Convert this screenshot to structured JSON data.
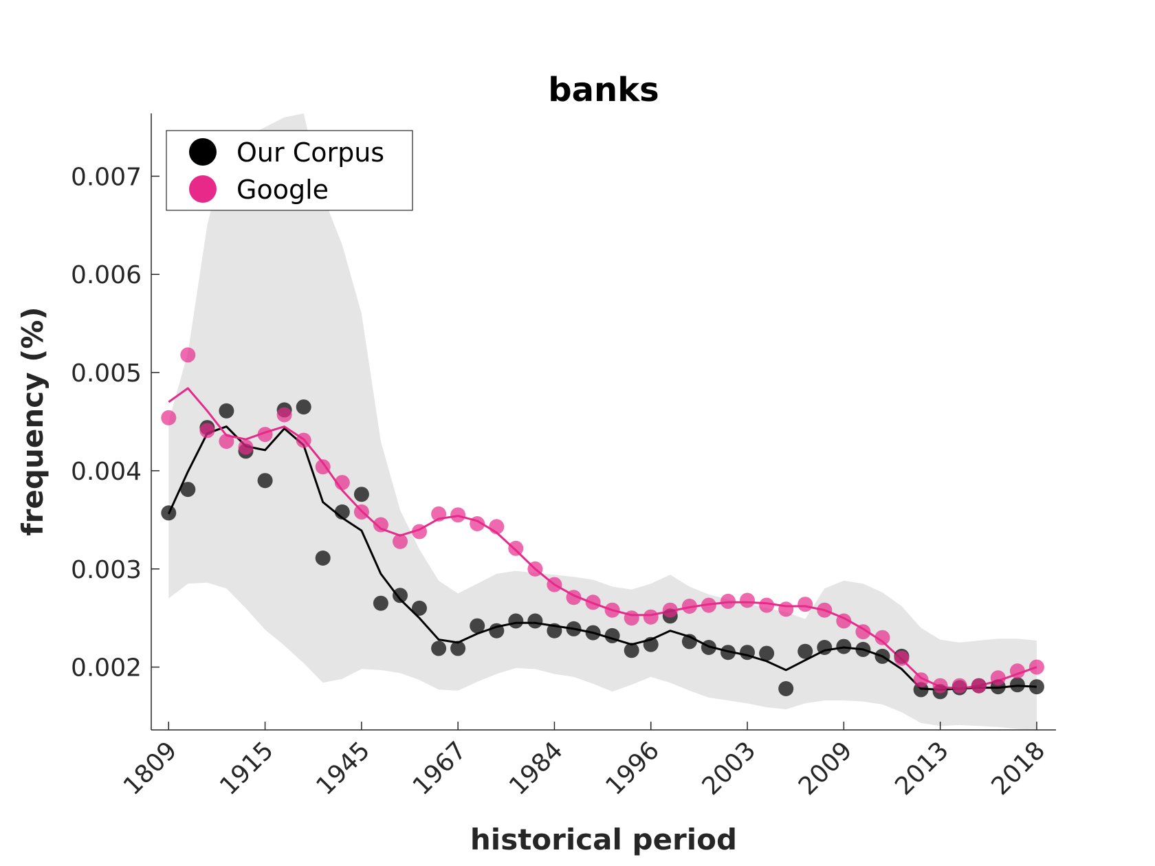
{
  "chart_data": {
    "type": "scatter",
    "title": "banks",
    "xlabel": "historical period",
    "ylabel": "frequency (%)",
    "x_tick_labels": [
      "1809",
      "1915",
      "1945",
      "1967",
      "1984",
      "1996",
      "2003",
      "2009",
      "2013",
      "2018"
    ],
    "x_tick_positions": [
      1,
      6,
      11,
      16,
      21,
      26,
      31,
      36,
      41,
      46
    ],
    "y_ticks": [
      0.002,
      0.003,
      0.004,
      0.005,
      0.006,
      0.007
    ],
    "y_tick_labels": [
      "0.002",
      "0.003",
      "0.004",
      "0.005",
      "0.006",
      "0.007"
    ],
    "xlim": [
      0.1,
      47
    ],
    "ylim": [
      0.00136,
      0.00764
    ],
    "grid": false,
    "legend_position": "top-left",
    "colors": {
      "corpus": "#000000",
      "google": "#e7298a",
      "band": "#e5e5e5",
      "axis": "#262626"
    },
    "band": {
      "name": "range",
      "x": [
        1,
        2,
        3,
        4,
        5,
        6,
        7,
        8,
        9,
        10,
        11,
        12,
        13,
        14,
        15,
        16,
        17,
        18,
        19,
        20,
        21,
        22,
        23,
        24,
        25,
        26,
        27,
        28,
        29,
        30,
        31,
        32,
        33,
        34,
        35,
        36,
        37,
        38,
        39,
        40,
        41,
        42,
        43,
        44,
        45,
        46
      ],
      "upper": [
        0.0045,
        0.0052,
        0.0065,
        0.0073,
        0.0074,
        0.0075,
        0.0076,
        0.00765,
        0.0068,
        0.0063,
        0.0056,
        0.0043,
        0.0036,
        0.0032,
        0.00288,
        0.00275,
        0.00285,
        0.00295,
        0.00298,
        0.00296,
        0.00294,
        0.00292,
        0.00289,
        0.00282,
        0.00279,
        0.00285,
        0.00294,
        0.00282,
        0.00274,
        0.00269,
        0.00265,
        0.0026,
        0.00256,
        0.00249,
        0.0028,
        0.00288,
        0.00285,
        0.00276,
        0.00262,
        0.0024,
        0.00228,
        0.00225,
        0.00227,
        0.00229,
        0.00229,
        0.00227
      ],
      "lower": [
        0.0027,
        0.00285,
        0.00286,
        0.0028,
        0.0026,
        0.00238,
        0.00222,
        0.00204,
        0.00184,
        0.00188,
        0.00198,
        0.00197,
        0.00194,
        0.00187,
        0.00177,
        0.00176,
        0.00185,
        0.00193,
        0.00199,
        0.00198,
        0.00193,
        0.0019,
        0.00183,
        0.00175,
        0.00182,
        0.0019,
        0.00184,
        0.00176,
        0.00169,
        0.00166,
        0.00163,
        0.00159,
        0.00157,
        0.00163,
        0.00166,
        0.00166,
        0.00165,
        0.00162,
        0.00154,
        0.00143,
        0.0014,
        0.00141,
        0.0014,
        0.00139,
        0.00137,
        0.00136
      ]
    },
    "series": [
      {
        "name": "Our Corpus",
        "x": [
          1,
          2,
          3,
          4,
          5,
          6,
          7,
          8,
          9,
          10,
          11,
          12,
          13,
          14,
          15,
          16,
          17,
          18,
          19,
          20,
          21,
          22,
          23,
          24,
          25,
          26,
          27,
          28,
          29,
          30,
          31,
          32,
          33,
          34,
          35,
          36,
          37,
          38,
          39,
          40,
          41,
          42,
          43,
          44,
          45,
          46
        ],
        "points": [
          0.00357,
          0.00381,
          0.00444,
          0.00461,
          0.0042,
          0.0039,
          0.00462,
          0.00465,
          0.00311,
          0.00358,
          0.00376,
          0.00265,
          0.00273,
          0.0026,
          0.00219,
          0.00219,
          0.00242,
          0.00237,
          0.00247,
          0.00247,
          0.00237,
          0.00239,
          0.00235,
          0.00232,
          0.00217,
          0.00223,
          0.00252,
          0.00226,
          0.0022,
          0.00215,
          0.00215,
          0.00214,
          0.00178,
          0.00216,
          0.0022,
          0.00221,
          0.00218,
          0.00211,
          0.00211,
          0.00177,
          0.00175,
          0.00179,
          0.00181,
          0.0018,
          0.00182,
          0.0018
        ],
        "trend": [
          0.00356,
          0.00399,
          0.00438,
          0.00445,
          0.00425,
          0.00421,
          0.00443,
          0.00426,
          0.00368,
          0.00352,
          0.00339,
          0.00295,
          0.00269,
          0.0025,
          0.00228,
          0.00225,
          0.00234,
          0.00241,
          0.00245,
          0.00245,
          0.00242,
          0.00239,
          0.00235,
          0.00229,
          0.00223,
          0.00228,
          0.00237,
          0.00231,
          0.00221,
          0.00216,
          0.00212,
          0.00206,
          0.00197,
          0.00207,
          0.00217,
          0.0022,
          0.00218,
          0.00211,
          0.00198,
          0.00178,
          0.00177,
          0.00178,
          0.00179,
          0.00179,
          0.00181,
          0.0018
        ]
      },
      {
        "name": "Google",
        "x": [
          1,
          2,
          3,
          4,
          5,
          6,
          7,
          8,
          9,
          10,
          11,
          12,
          13,
          14,
          15,
          16,
          17,
          18,
          19,
          20,
          21,
          22,
          23,
          24,
          25,
          26,
          27,
          28,
          29,
          30,
          31,
          32,
          33,
          34,
          35,
          36,
          37,
          38,
          39,
          40,
          41,
          42,
          43,
          44,
          45,
          46
        ],
        "points": [
          0.00454,
          0.00518,
          0.00441,
          0.0043,
          0.00424,
          0.00437,
          0.00457,
          0.00431,
          0.00404,
          0.00388,
          0.00358,
          0.00345,
          0.00328,
          0.00338,
          0.00356,
          0.00355,
          0.00346,
          0.00343,
          0.00321,
          0.003,
          0.00284,
          0.00271,
          0.00266,
          0.00258,
          0.0025,
          0.00251,
          0.00258,
          0.00262,
          0.00263,
          0.00267,
          0.00268,
          0.00263,
          0.00259,
          0.00264,
          0.00258,
          0.00247,
          0.00236,
          0.0023,
          0.00209,
          0.00187,
          0.00181,
          0.00181,
          0.00181,
          0.00189,
          0.00196,
          0.002
        ],
        "trend": [
          0.0047,
          0.00484,
          0.00461,
          0.00436,
          0.00432,
          0.00439,
          0.00445,
          0.00432,
          0.00408,
          0.0038,
          0.00359,
          0.00341,
          0.00334,
          0.0034,
          0.00351,
          0.00354,
          0.00349,
          0.00337,
          0.00319,
          0.003,
          0.00284,
          0.00273,
          0.00265,
          0.00258,
          0.00253,
          0.00253,
          0.00257,
          0.00261,
          0.00264,
          0.00266,
          0.00266,
          0.00265,
          0.00262,
          0.00262,
          0.00258,
          0.0025,
          0.00239,
          0.00226,
          0.00208,
          0.00189,
          0.0018,
          0.00178,
          0.00181,
          0.00186,
          0.00193,
          0.002
        ]
      }
    ]
  }
}
